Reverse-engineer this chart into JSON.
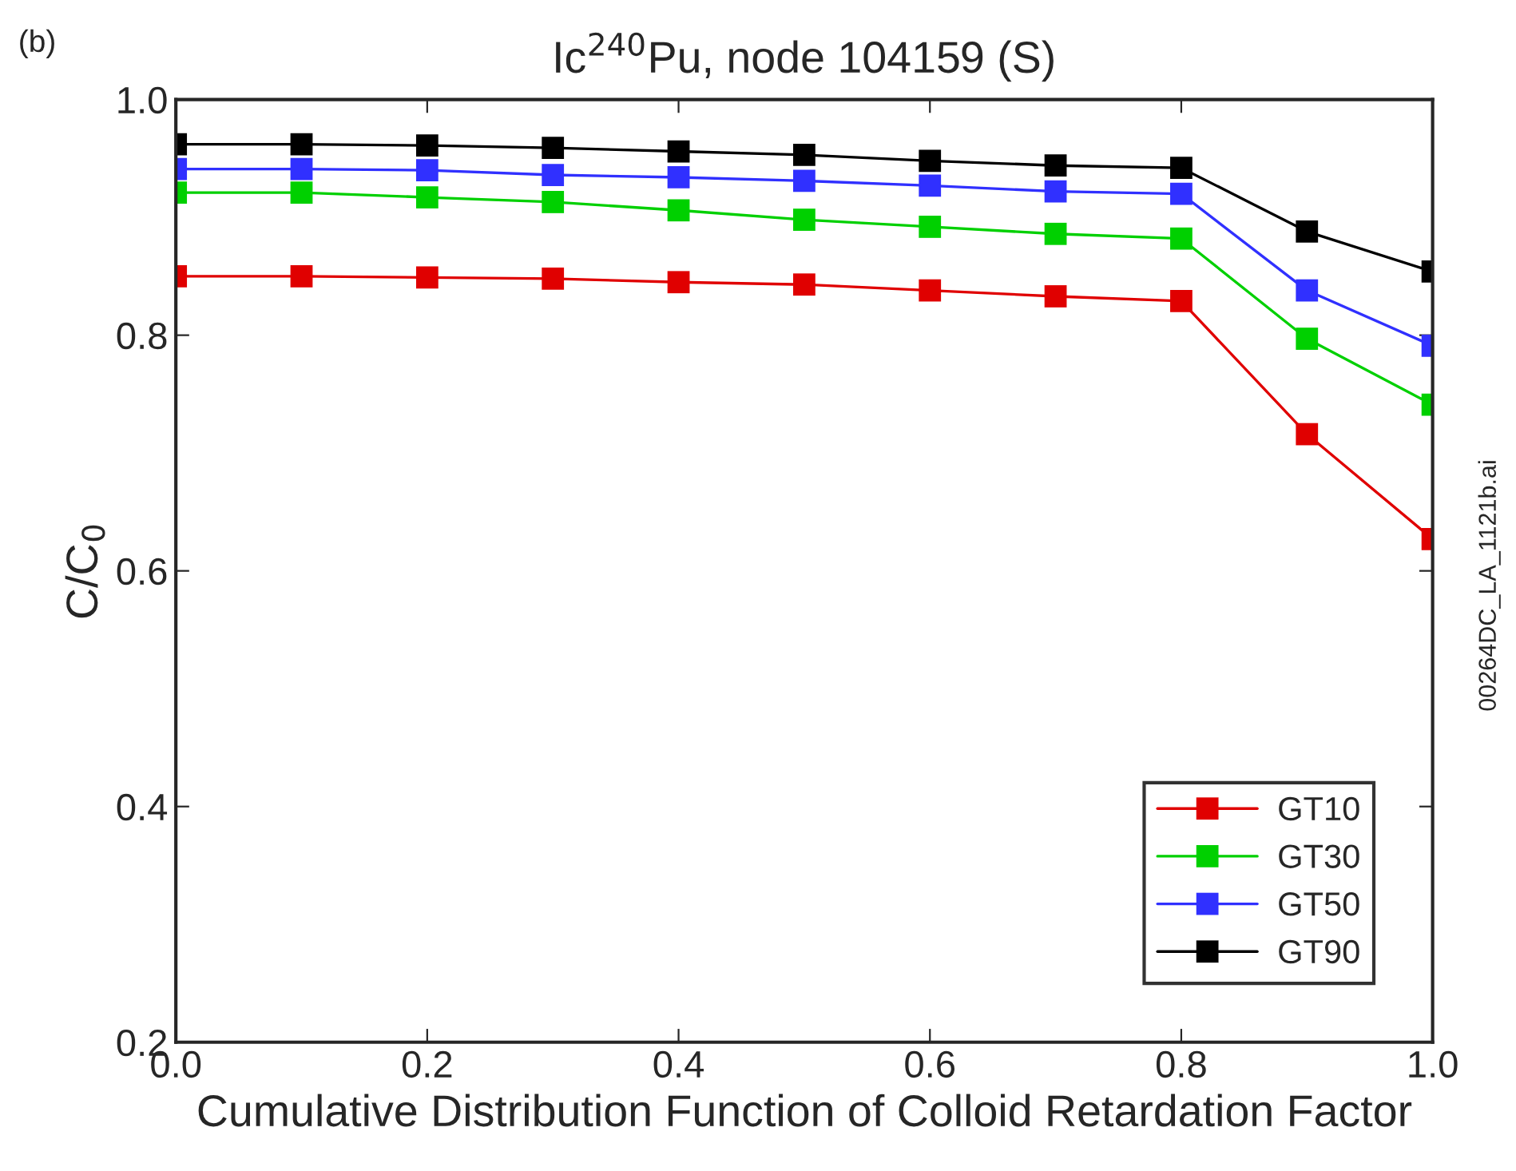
{
  "chart_data": {
    "type": "line",
    "title": "Ic$^{240}$Pu, node 104159 (S)",
    "xlabel": "Cumulative Distribution Function of Colloid Retardation Factor",
    "ylabel": "C/C$_{0}$",
    "annotations": [
      "(b)",
      "00264DC_LA_1121b.ai"
    ],
    "x": [
      0.0,
      0.1,
      0.2,
      0.3,
      0.4,
      0.5,
      0.6,
      0.7,
      0.8,
      0.9,
      1.0
    ],
    "series": [
      {
        "name": "GT10",
        "color": "#e00000",
        "values": [
          0.85,
          0.85,
          0.849,
          0.848,
          0.845,
          0.843,
          0.838,
          0.833,
          0.829,
          0.716,
          0.627
        ]
      },
      {
        "name": "GT30",
        "color": "#00d000",
        "values": [
          0.921,
          0.921,
          0.917,
          0.913,
          0.906,
          0.898,
          0.892,
          0.886,
          0.882,
          0.797,
          0.741
        ]
      },
      {
        "name": "GT50",
        "color": "#3030ff",
        "values": [
          0.941,
          0.941,
          0.94,
          0.936,
          0.934,
          0.931,
          0.927,
          0.922,
          0.92,
          0.838,
          0.791
        ]
      },
      {
        "name": "GT90",
        "color": "#000000",
        "values": [
          0.962,
          0.962,
          0.961,
          0.959,
          0.956,
          0.953,
          0.948,
          0.944,
          0.942,
          0.888,
          0.854
        ]
      }
    ],
    "xlim": [
      0,
      1.0
    ],
    "ylim": [
      0.2,
      1.0
    ],
    "xticks": [
      {
        "value": 0,
        "label": "0.0"
      },
      0.2,
      0.4,
      0.6,
      0.8,
      {
        "value": 1,
        "label": "1.0"
      }
    ],
    "yticks": [
      0.2,
      0.4,
      0.6,
      0.8,
      {
        "value": 1,
        "label": "1.0"
      }
    ],
    "grid": false,
    "legend": "bottom right",
    "marker": "square",
    "line_style": "solid"
  }
}
